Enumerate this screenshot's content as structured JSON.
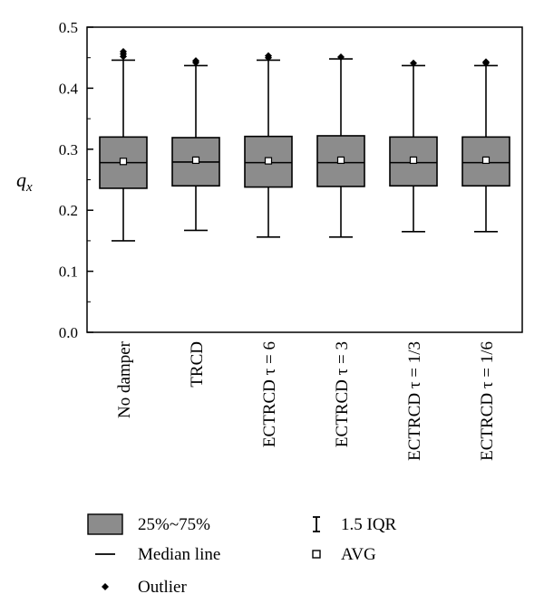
{
  "chart_data": {
    "type": "box",
    "categories": [
      "No damper",
      "TRCD",
      "ECTRCD τ = 6",
      "ECTRCD τ = 3",
      "ECTRCD τ = 1/3",
      "ECTRCD τ = 1/6"
    ],
    "boxes": [
      {
        "q1": 0.236,
        "median": 0.278,
        "q3": 0.32,
        "whisker_low": 0.15,
        "whisker_high": 0.446,
        "mean": 0.28,
        "outliers": [
          0.452,
          0.456,
          0.46
        ]
      },
      {
        "q1": 0.24,
        "median": 0.279,
        "q3": 0.319,
        "whisker_low": 0.167,
        "whisker_high": 0.437,
        "mean": 0.282,
        "outliers": [
          0.442,
          0.445
        ]
      },
      {
        "q1": 0.238,
        "median": 0.278,
        "q3": 0.321,
        "whisker_low": 0.156,
        "whisker_high": 0.446,
        "mean": 0.281,
        "outliers": [
          0.45,
          0.453
        ]
      },
      {
        "q1": 0.239,
        "median": 0.278,
        "q3": 0.322,
        "whisker_low": 0.156,
        "whisker_high": 0.448,
        "mean": 0.282,
        "outliers": [
          0.451
        ]
      },
      {
        "q1": 0.24,
        "median": 0.278,
        "q3": 0.32,
        "whisker_low": 0.165,
        "whisker_high": 0.437,
        "mean": 0.282,
        "outliers": [
          0.441
        ]
      },
      {
        "q1": 0.24,
        "median": 0.278,
        "q3": 0.32,
        "whisker_low": 0.165,
        "whisker_high": 0.437,
        "mean": 0.282,
        "outliers": [
          0.441,
          0.443
        ]
      }
    ],
    "ylabel": "q",
    "ylabel_subscript": "x",
    "ylim": [
      0.0,
      0.5
    ],
    "yticks": [
      "0.0",
      "0.1",
      "0.2",
      "0.3",
      "0.4",
      "0.5"
    ],
    "grid": false,
    "legend": {
      "placement": "bottom",
      "items": [
        {
          "symbol": "box",
          "label": "25%~75%"
        },
        {
          "symbol": "whisker",
          "label": "1.5 IQR"
        },
        {
          "symbol": "median",
          "label": "Median line"
        },
        {
          "symbol": "mean",
          "label": "AVG"
        },
        {
          "symbol": "outlier",
          "label": "Outlier"
        }
      ]
    },
    "colors": {
      "box_fill": "#8c8c8c",
      "stroke": "#000000"
    }
  }
}
